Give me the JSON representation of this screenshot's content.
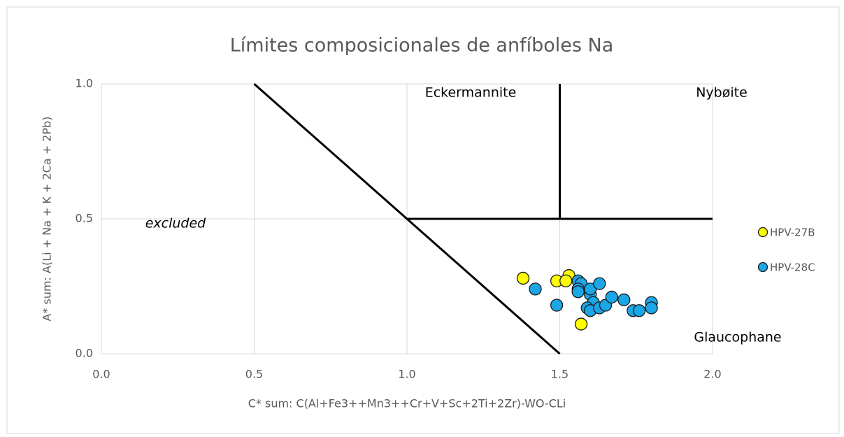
{
  "chart_data": {
    "type": "scatter",
    "title": "Límites composicionales de anfíboles Na",
    "x_label": "C* sum: C(Al+Fe3++Mn3++Cr+V+Sc+2Ti+2Zr)-WO-CLi",
    "y_label": "A* sum: A(Li + Na + K + 2Ca + 2Pb)",
    "xlim": [
      0,
      2
    ],
    "ylim": [
      0,
      1
    ],
    "xticks": [
      {
        "value": 0,
        "label": "0.0"
      },
      0.5,
      {
        "value": 1,
        "label": "1.0"
      },
      1.5,
      {
        "value": 2,
        "label": "2.0"
      }
    ],
    "yticks": [
      {
        "value": 0,
        "label": "0.0"
      },
      0.5,
      {
        "value": 1,
        "label": "1.0"
      }
    ],
    "grid": true,
    "legend": "right",
    "annotations": [
      "Eckermannite",
      "Nybøite",
      "excluded",
      "Glaucophane"
    ],
    "lines": [
      {
        "color": "#000000",
        "x": [
          0.5,
          1.5
        ],
        "y": [
          1,
          0
        ]
      },
      {
        "color": "#000000",
        "x": [
          1,
          2
        ],
        "y": [
          0.5,
          0.5
        ]
      },
      {
        "color": "#000000",
        "x": [
          1.5,
          1.5
        ],
        "y": [
          0.5,
          1
        ]
      }
    ],
    "series": [
      {
        "name": "HPV-27B",
        "color": "#ffff00",
        "x": [
          1.38,
          1.49,
          1.53,
          1.52,
          1.57
        ],
        "values": [
          0.28,
          0.27,
          0.29,
          0.27,
          0.11
        ]
      },
      {
        "name": "HPV-28C",
        "color": "#1ba6e6",
        "x": [
          1.42,
          1.49,
          1.56,
          1.57,
          1.56,
          1.56,
          1.6,
          1.6,
          1.63,
          1.61,
          1.59,
          1.6,
          1.63,
          1.65,
          1.67,
          1.71,
          1.74,
          1.76,
          1.8,
          1.8
        ],
        "values": [
          0.24,
          0.18,
          0.27,
          0.26,
          0.24,
          0.23,
          0.22,
          0.24,
          0.26,
          0.19,
          0.17,
          0.16,
          0.17,
          0.18,
          0.21,
          0.2,
          0.16,
          0.16,
          0.19,
          0.17
        ]
      }
    ]
  }
}
